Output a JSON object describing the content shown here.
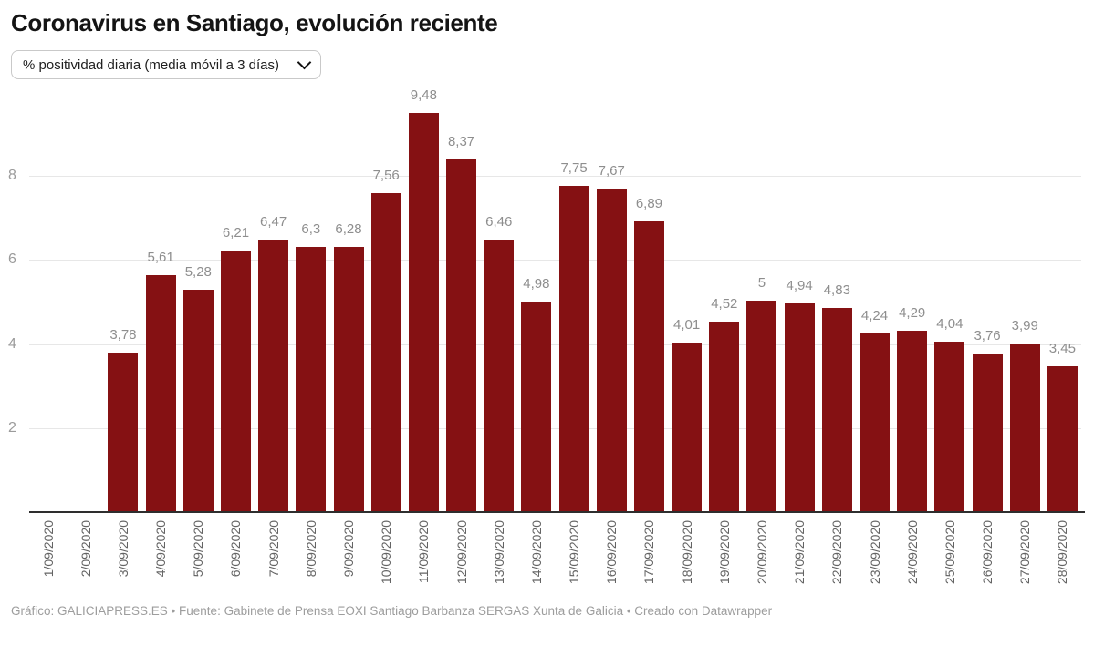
{
  "header": {
    "title": "Coronavirus en Santiago, evolución reciente",
    "metric_selector": {
      "value": "% positividad diaria (media móvil a 3 días)"
    }
  },
  "footer": {
    "credit": "Gráfico: GALICIAPRESS.ES • Fuente: Gabinete de Prensa EOXI Santiago Barbanza SERGAS Xunta de Galicia • Creado con Datawrapper"
  },
  "colors": {
    "bar": "#851113",
    "value_label": "#8e8e8e",
    "y_axis_label": "#9b9b9b",
    "x_axis_label": "#646464",
    "gridline": "#e7e7e7",
    "baseline": "#2e2e2e",
    "footer_text": "#9d9d9d"
  },
  "chart_data": {
    "type": "bar",
    "title": "Coronavirus en Santiago, evolución reciente",
    "metric": "% positividad diaria (media móvil a 3 días)",
    "categories": [
      "1/09/2020",
      "2/09/2020",
      "3/09/2020",
      "4/09/2020",
      "5/09/2020",
      "6/09/2020",
      "7/09/2020",
      "8/09/2020",
      "9/09/2020",
      "10/09/2020",
      "11/09/2020",
      "12/09/2020",
      "13/09/2020",
      "14/09/2020",
      "15/09/2020",
      "16/09/2020",
      "17/09/2020",
      "18/09/2020",
      "19/09/2020",
      "20/09/2020",
      "21/09/2020",
      "22/09/2020",
      "23/09/2020",
      "24/09/2020",
      "25/09/2020",
      "26/09/2020",
      "27/09/2020",
      "28/09/2020"
    ],
    "values": [
      null,
      null,
      3.78,
      5.61,
      5.28,
      6.21,
      6.47,
      6.3,
      6.28,
      7.56,
      9.48,
      8.37,
      6.46,
      4.98,
      7.75,
      7.67,
      6.89,
      4.01,
      4.52,
      5,
      4.94,
      4.83,
      4.24,
      4.29,
      4.04,
      3.76,
      3.99,
      3.45
    ],
    "value_labels": [
      null,
      null,
      "3,78",
      "5,61",
      "5,28",
      "6,21",
      "6,47",
      "6,3",
      "6,28",
      "7,56",
      "9,48",
      "8,37",
      "6,46",
      "4,98",
      "7,75",
      "7,67",
      "6,89",
      "4,01",
      "4,52",
      "5",
      "4,94",
      "4,83",
      "4,24",
      "4,29",
      "4,04",
      "3,76",
      "3,99",
      "3,45"
    ],
    "y_ticks": [
      2,
      4,
      6,
      8
    ],
    "ylim": [
      0,
      10.1
    ],
    "grid": true,
    "legend": "none",
    "xlabel": "",
    "ylabel": ""
  }
}
